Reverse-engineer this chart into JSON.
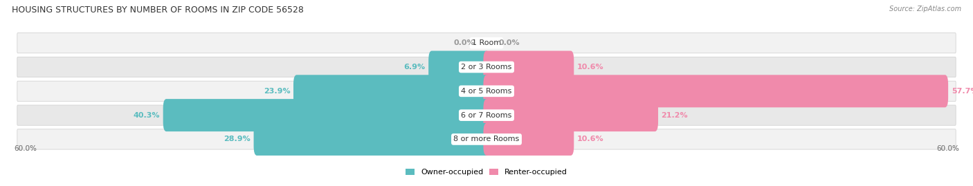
{
  "title": "HOUSING STRUCTURES BY NUMBER OF ROOMS IN ZIP CODE 56528",
  "source": "Source: ZipAtlas.com",
  "categories": [
    "1 Room",
    "2 or 3 Rooms",
    "4 or 5 Rooms",
    "6 or 7 Rooms",
    "8 or more Rooms"
  ],
  "owner_pct": [
    0.0,
    6.9,
    23.9,
    40.3,
    28.9
  ],
  "renter_pct": [
    0.0,
    10.6,
    57.7,
    21.2,
    10.6
  ],
  "owner_color": "#5bbcbf",
  "renter_color": "#f08aab",
  "axis_max": 60.0,
  "row_bg_light": "#f2f2f2",
  "row_bg_dark": "#e8e8e8",
  "value_label_fontsize": 8,
  "category_label_fontsize": 8,
  "title_fontsize": 9,
  "legend_fontsize": 8
}
